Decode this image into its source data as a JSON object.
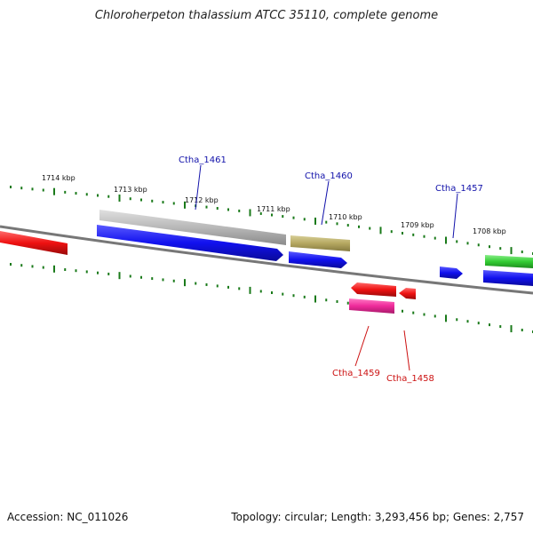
{
  "title": "Chloroherpeton thalassium ATCC 35110, complete genome",
  "footer": {
    "accession": "Accession: NC_011026",
    "summary": "Topology: circular; Length: 3,293,456 bp; Genes: 2,757"
  },
  "ticks": [
    "1714 kbp",
    "1713 kbp",
    "1712 kbp",
    "1711 kbp",
    "1710 kbp",
    "1709 kbp",
    "1708 kbp"
  ],
  "gene_labels": [
    "Ctha_1461",
    "Ctha_1460",
    "Ctha_1457",
    "Ctha_1459",
    "Ctha_1458"
  ],
  "colors": {
    "red": "#ee1111",
    "blue": "#1111ee",
    "gray": "#b0b0b0",
    "olive": "#b5a860",
    "green": "#33cc33",
    "pink": "#ee2a9a",
    "label_blue": "#1111aa",
    "label_red": "#cc1111",
    "tick_green": "#1a7a1a",
    "backbone": "#777777"
  }
}
